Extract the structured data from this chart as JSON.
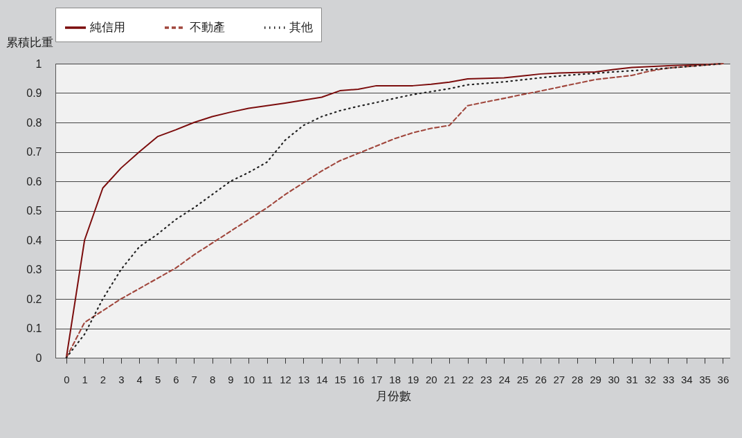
{
  "chart_data": {
    "type": "line",
    "xlabel": "月份數",
    "ylabel": "累積比重",
    "x": [
      0,
      1,
      2,
      3,
      4,
      5,
      6,
      7,
      8,
      9,
      10,
      11,
      12,
      13,
      14,
      15,
      16,
      17,
      18,
      19,
      20,
      21,
      22,
      23,
      24,
      25,
      26,
      27,
      28,
      29,
      30,
      31,
      32,
      33,
      34,
      35,
      36
    ],
    "xlim": [
      -0.6,
      36.4
    ],
    "xticks": [
      0,
      1,
      2,
      3,
      4,
      5,
      6,
      7,
      8,
      9,
      10,
      11,
      12,
      13,
      14,
      15,
      16,
      17,
      18,
      19,
      20,
      21,
      22,
      23,
      24,
      25,
      26,
      27,
      28,
      29,
      30,
      31,
      32,
      33,
      34,
      35,
      36
    ],
    "ylim": [
      0,
      1
    ],
    "yticks": [
      0,
      0.1,
      0.2,
      0.3,
      0.4,
      0.5,
      0.6,
      0.7,
      0.8,
      0.9,
      1
    ],
    "grid": "y",
    "legend": "top",
    "marker": "none",
    "series": [
      {
        "name": "純信用",
        "color": "#7b0c0c",
        "line_style": "solid",
        "values": [
          0,
          0.4,
          0.577,
          0.645,
          0.7,
          0.752,
          0.775,
          0.8,
          0.82,
          0.835,
          0.848,
          0.857,
          0.866,
          0.876,
          0.886,
          0.908,
          0.913,
          0.925,
          0.925,
          0.925,
          0.93,
          0.937,
          0.948,
          0.95,
          0.952,
          0.958,
          0.965,
          0.968,
          0.97,
          0.972,
          0.98,
          0.987,
          0.99,
          0.993,
          0.995,
          0.997,
          1
        ]
      },
      {
        "name": "不動產",
        "color": "#a0463c",
        "line_style": "dashed",
        "values": [
          0,
          0.12,
          0.16,
          0.2,
          0.235,
          0.27,
          0.305,
          0.35,
          0.39,
          0.43,
          0.47,
          0.51,
          0.555,
          0.595,
          0.635,
          0.67,
          0.695,
          0.72,
          0.745,
          0.765,
          0.78,
          0.79,
          0.857,
          0.87,
          0.882,
          0.895,
          0.907,
          0.92,
          0.933,
          0.946,
          0.953,
          0.96,
          0.975,
          0.985,
          0.99,
          0.995,
          1
        ]
      },
      {
        "name": "其他",
        "color": "#222222",
        "line_style": "dotted",
        "values": [
          0,
          0.08,
          0.2,
          0.3,
          0.377,
          0.42,
          0.47,
          0.51,
          0.555,
          0.6,
          0.63,
          0.665,
          0.74,
          0.79,
          0.82,
          0.84,
          0.855,
          0.868,
          0.882,
          0.895,
          0.905,
          0.915,
          0.928,
          0.933,
          0.938,
          0.945,
          0.952,
          0.958,
          0.963,
          0.967,
          0.972,
          0.976,
          0.98,
          0.985,
          0.99,
          0.995,
          1
        ]
      }
    ]
  }
}
